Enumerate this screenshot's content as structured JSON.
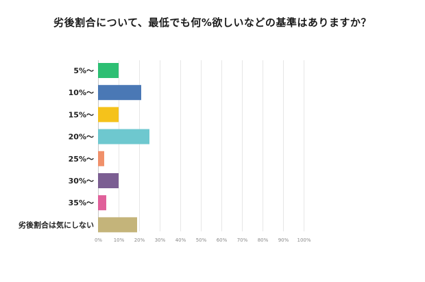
{
  "chart_data": {
    "type": "bar",
    "orientation": "horizontal",
    "title": "劣後割合について、最低でも何%欲しいなどの基準はありますか？",
    "categories": [
      "5%～",
      "10%～",
      "15%～",
      "20%～",
      "25%～",
      "30%～",
      "35%～",
      "劣後割合は気にしない"
    ],
    "values": [
      10,
      21,
      10,
      25,
      3,
      10,
      4,
      19
    ],
    "unit": "%",
    "colors": [
      "#2dbf73",
      "#4a78b5",
      "#f5c21b",
      "#6ec8cf",
      "#f0906a",
      "#7b5e92",
      "#e0609a",
      "#c4b47a"
    ],
    "xlim": [
      0,
      100
    ],
    "ticks": [
      "0%",
      "10%",
      "20%",
      "30%",
      "40%",
      "50%",
      "60%",
      "70%",
      "80%",
      "90%",
      "100%"
    ],
    "grid": true,
    "legend": "none"
  }
}
